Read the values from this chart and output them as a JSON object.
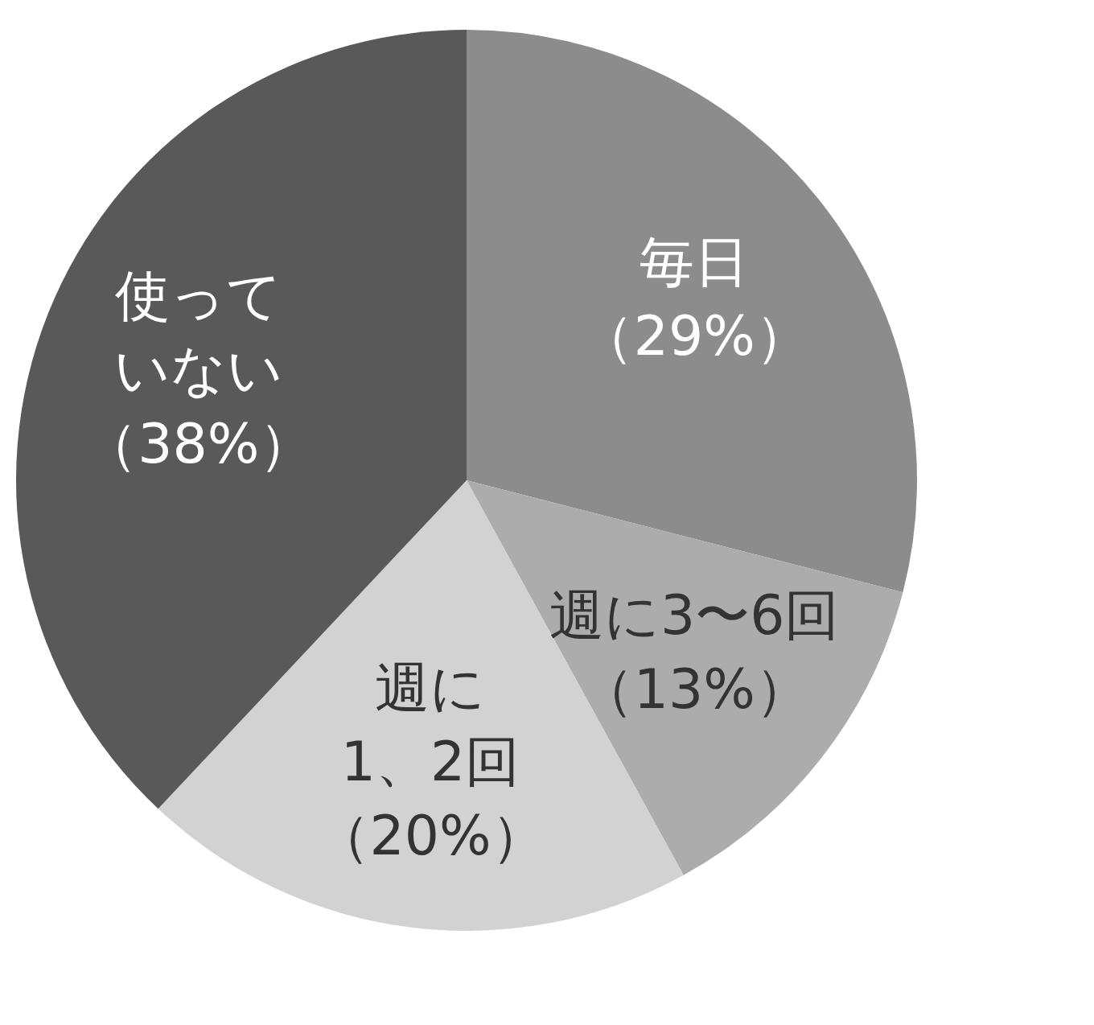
{
  "chart_data": {
    "type": "pie",
    "categories": [
      "毎日",
      "週に3〜6回",
      "週に1、2回",
      "使っていない"
    ],
    "values": [
      29,
      13,
      20,
      38
    ],
    "value_labels": [
      "（29%）",
      "（13%）",
      "（20%）",
      "（38%）"
    ],
    "colors": [
      "#8c8c8c",
      "#acacac",
      "#d2d2d2",
      "#595959"
    ],
    "legend": false
  }
}
